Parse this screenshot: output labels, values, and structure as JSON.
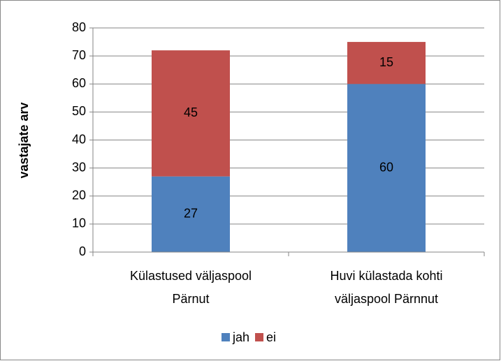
{
  "chart_data": {
    "type": "stacked_bar",
    "y_label": "vastajate arv",
    "categories": [
      [
        "Külastused väljaspool",
        "Pärnut"
      ],
      [
        "Huvi külastada kohti",
        "väljaspool Pärnnut"
      ]
    ],
    "series": [
      {
        "name": "jah",
        "color": "#4f81bd",
        "values": [
          27,
          60
        ]
      },
      {
        "name": "ei",
        "color": "#c0504d",
        "values": [
          45,
          15
        ]
      }
    ],
    "ylim": [
      0,
      80
    ],
    "yticks": [
      0,
      10,
      20,
      30,
      40,
      50,
      60,
      70,
      80
    ],
    "grid": true,
    "legend": "bottom"
  }
}
